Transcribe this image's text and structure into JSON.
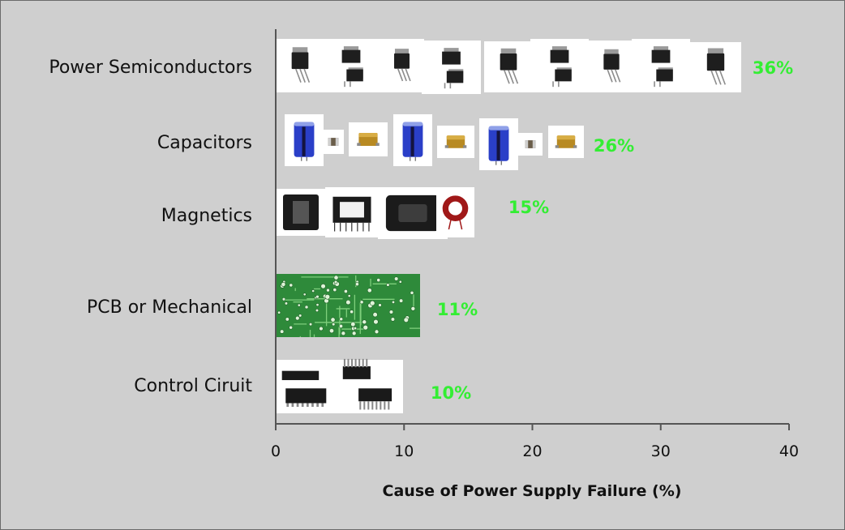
{
  "chart_data": {
    "type": "bar",
    "orientation": "horizontal",
    "categories": [
      "Power Semiconductors",
      "Capacitors",
      "Magnetics",
      "PCB or Mechanical",
      "Control Ciruit"
    ],
    "values": [
      36,
      26,
      15,
      11,
      10
    ],
    "value_labels": [
      "36%",
      "26%",
      "15%",
      "11%",
      "10%"
    ],
    "xlabel": "Cause of Power Supply Failure (%)",
    "xlim": [
      0,
      40
    ],
    "xticks": [
      0,
      10,
      20,
      30,
      40
    ],
    "grid": false,
    "legend": "none",
    "bar_fill": [
      "transistor-icons",
      "capacitor-icons",
      "magnetics-icons",
      "pcb-board",
      "ic-chip-icons"
    ]
  },
  "colors": {
    "background": "#cfcfcf",
    "axis": "#555555",
    "value_label": "#33ee33",
    "tile": "#ffffff",
    "pcb": "#2e8a3a",
    "transistor": "#1e1e1e",
    "cap_electrolytic": "#2a3fc8",
    "cap_tantalum": "#b88a22",
    "core": "#1b1b1b",
    "toroid": "#a01818"
  }
}
